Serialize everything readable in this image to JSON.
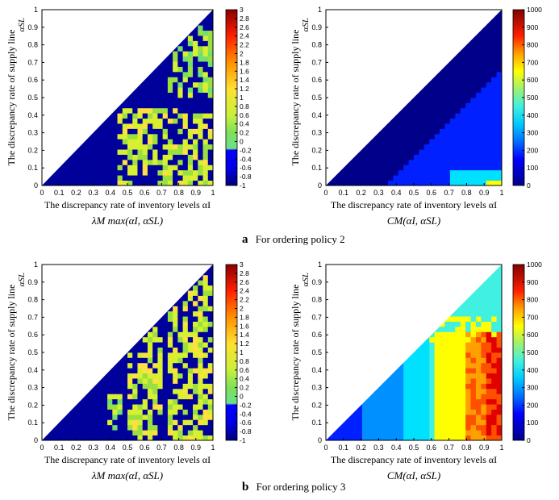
{
  "figure": {
    "caption_a_letter": "a",
    "caption_a_text": "For ordering policy 2",
    "caption_b_letter": "b",
    "caption_b_text": "For ordering policy 3"
  },
  "chart_data": [
    {
      "type": "heatmap",
      "id": "a-left",
      "xlabel": "The discrepancy rate of inventory levels α_I",
      "ylabel": "The discrepancy rate of supply line",
      "y_axis_symbol": "α_SL",
      "subtitle": "λ_M max(α_I, α_SL)",
      "xlim": [
        0,
        1
      ],
      "ylim": [
        0,
        1
      ],
      "x_ticks": [
        "0",
        "0.1",
        "0.2",
        "0.3",
        "0.4",
        "0.5",
        "0.6",
        "0.7",
        "0.8",
        "0.9",
        "1"
      ],
      "y_ticks": [
        "0",
        "0.1",
        "0.2",
        "0.3",
        "0.4",
        "0.5",
        "0.6",
        "0.7",
        "0.8",
        "0.9",
        "1"
      ],
      "colorbar": {
        "min": -1,
        "max": 3,
        "ticks": [
          "3",
          "2.8",
          "2.6",
          "2.4",
          "2.2",
          "2",
          "1.8",
          "1.6",
          "1.4",
          "1.2",
          "1",
          "0.8",
          "0.6",
          "0.4",
          "0.2",
          "0",
          "-0.2",
          "-0.4",
          "-0.6",
          "-0.8",
          "-1"
        ]
      },
      "domain": "alpha_SL <= alpha_I",
      "background_value": -0.8,
      "regions": [
        {
          "description": "scattered green-yellow cells, lower-right",
          "x_range": [
            0.45,
            1.0
          ],
          "y_range": [
            0.0,
            0.45
          ],
          "value": 0.4
        },
        {
          "description": "scattered green cells, upper-right edge",
          "x_range": [
            0.75,
            1.0
          ],
          "y_range": [
            0.5,
            0.9
          ],
          "value": 0.3
        }
      ]
    },
    {
      "type": "heatmap",
      "id": "a-right",
      "xlabel": "The discrepancy rate of inventory levels α_I",
      "ylabel": "The discrepancy rate of supply line",
      "y_axis_symbol": "α_SL",
      "subtitle": "C_M(α_I, α_SL)",
      "xlim": [
        0,
        1
      ],
      "ylim": [
        0,
        1
      ],
      "x_ticks": [
        "0",
        "0.1",
        "0.2",
        "0.3",
        "0.4",
        "0.5",
        "0.6",
        "0.7",
        "0.8",
        "0.9",
        "1"
      ],
      "y_ticks": [
        "0",
        "0.1",
        "0.2",
        "0.3",
        "0.4",
        "0.5",
        "0.6",
        "0.7",
        "0.8",
        "0.9",
        "1"
      ],
      "colorbar": {
        "min": 0,
        "max": 1000,
        "ticks": [
          "1000",
          "900",
          "800",
          "700",
          "600",
          "500",
          "400",
          "300",
          "200",
          "100",
          "0"
        ]
      },
      "domain": "alpha_SL <= alpha_I",
      "regions": [
        {
          "description": "dark band along diagonal",
          "value": 20
        },
        {
          "description": "mid-blue interior",
          "value": 100
        },
        {
          "description": "lighter blue lower-right",
          "value": 200
        },
        {
          "description": "cyan corner",
          "x_range": [
            0.7,
            1.0
          ],
          "y_range": [
            0.0,
            0.1
          ],
          "value": 350
        }
      ]
    },
    {
      "type": "heatmap",
      "id": "b-left",
      "xlabel": "The discrepancy rate of inventory levels α_I",
      "ylabel": "The discrepancy rate of supply line",
      "y_axis_symbol": "α_SL",
      "subtitle": "λ_M max(α_I, α_SL)",
      "xlim": [
        0,
        1
      ],
      "ylim": [
        0,
        1
      ],
      "x_ticks": [
        "0",
        "0.1",
        "0.2",
        "0.3",
        "0.4",
        "0.5",
        "0.6",
        "0.7",
        "0.8",
        "0.9",
        "1"
      ],
      "y_ticks": [
        "0",
        "0.1",
        "0.2",
        "0.3",
        "0.4",
        "0.5",
        "0.6",
        "0.7",
        "0.8",
        "0.9",
        "1"
      ],
      "colorbar": {
        "min": -1,
        "max": 3,
        "ticks": [
          "3",
          "2.8",
          "2.6",
          "2.4",
          "2.2",
          "2",
          "1.8",
          "1.6",
          "1.4",
          "1.2",
          "1",
          "0.8",
          "0.6",
          "0.4",
          "0.2",
          "0",
          "-0.2",
          "-0.4",
          "-0.6",
          "-0.8",
          "-1"
        ]
      },
      "domain": "alpha_SL <= alpha_I",
      "background_value": -0.8,
      "regions": [
        {
          "description": "green-yellow band",
          "x_range": [
            0.5,
            0.7
          ],
          "y_range": [
            0.0,
            0.7
          ],
          "value": 0.4
        },
        {
          "description": "green-yellow band",
          "x_range": [
            0.75,
            1.0
          ],
          "y_range": [
            0.0,
            0.95
          ],
          "value": 0.4
        },
        {
          "description": "small patch",
          "x_range": [
            0.38,
            0.47
          ],
          "y_range": [
            0.05,
            0.25
          ],
          "value": 0.3
        }
      ]
    },
    {
      "type": "heatmap",
      "id": "b-right",
      "xlabel": "The discrepancy rate of inventory levels α_I",
      "ylabel": "The discrepancy rate of supply line",
      "y_axis_symbol": "α_SL",
      "subtitle": "C_M(α_I, α_SL)",
      "xlim": [
        0,
        1
      ],
      "ylim": [
        0,
        1
      ],
      "x_ticks": [
        "0",
        "0.1",
        "0.2",
        "0.3",
        "0.4",
        "0.5",
        "0.6",
        "0.7",
        "0.8",
        "0.9",
        "1"
      ],
      "y_ticks": [
        "0",
        "0.1",
        "0.2",
        "0.3",
        "0.4",
        "0.5",
        "0.6",
        "0.7",
        "0.8",
        "0.9",
        "1"
      ],
      "colorbar": {
        "min": 0,
        "max": 1000,
        "ticks": [
          "1000",
          "900",
          "800",
          "700",
          "600",
          "500",
          "400",
          "300",
          "200",
          "100",
          "0"
        ]
      },
      "domain": "alpha_SL <= alpha_I",
      "regions": [
        {
          "description": "teal",
          "x_range": [
            0.0,
            0.45
          ],
          "value": 300
        },
        {
          "description": "cyan",
          "x_range": [
            0.45,
            0.6
          ],
          "value": 400
        },
        {
          "description": "light green",
          "x_range": [
            0.6,
            1.0
          ],
          "y_range": [
            0.6,
            1.0
          ],
          "value": 500
        },
        {
          "description": "yellow-orange",
          "x_range": [
            0.6,
            0.85
          ],
          "y_range": [
            0.0,
            0.6
          ],
          "value": 650
        },
        {
          "description": "red",
          "x_range": [
            0.85,
            1.0
          ],
          "y_range": [
            0.0,
            0.6
          ],
          "value": 850
        }
      ]
    }
  ]
}
